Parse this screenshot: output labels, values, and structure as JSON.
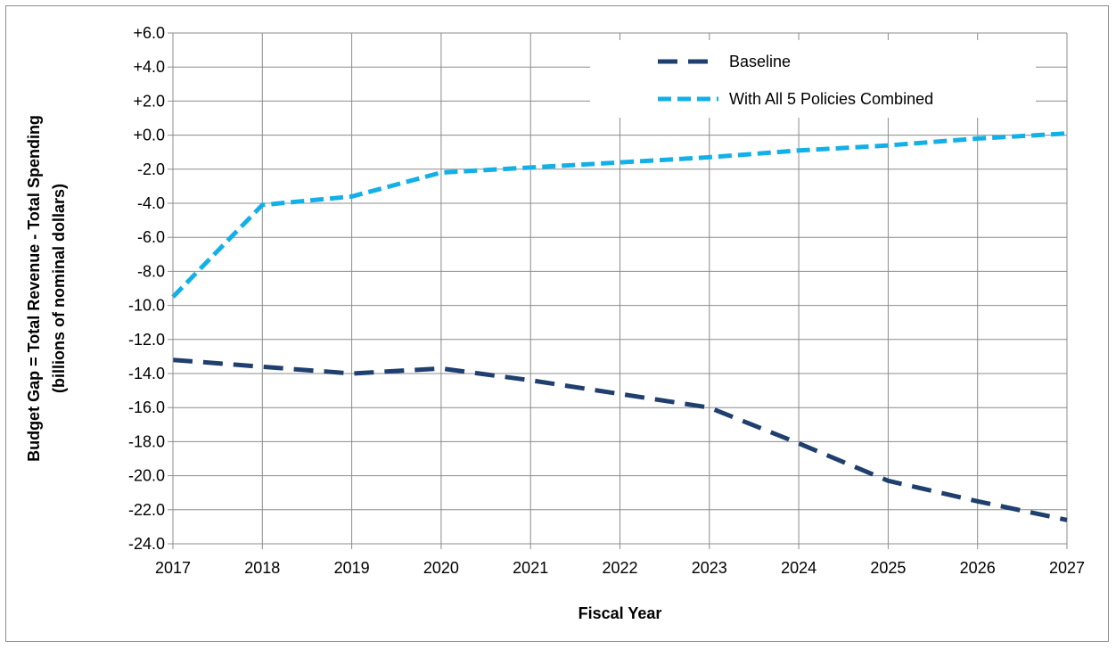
{
  "chart_data": {
    "type": "line",
    "xlabel": "Fiscal Year",
    "ylabel_line1": "Budget Gap = Total Revenue - Total Spending",
    "ylabel_line2": "(billions of nominal dollars)",
    "x": [
      2017,
      2018,
      2019,
      2020,
      2021,
      2022,
      2023,
      2024,
      2025,
      2026,
      2027
    ],
    "x_tick_labels": [
      "2017",
      "2018",
      "2019",
      "2020",
      "2021",
      "2022",
      "2023",
      "2024",
      "2025",
      "2026",
      "2027"
    ],
    "ylim": [
      -24,
      6
    ],
    "y_ticks": [
      6,
      4,
      2,
      0,
      -2,
      -4,
      -6,
      -8,
      -10,
      -12,
      -14,
      -16,
      -18,
      -20,
      -22,
      -24
    ],
    "y_tick_labels": [
      "+6.0",
      "+4.0",
      "+2.0",
      "+0.0",
      "-2.0",
      "-4.0",
      "-6.0",
      "-8.0",
      "-10.0",
      "-12.0",
      "-14.0",
      "-16.0",
      "-18.0",
      "-20.0",
      "-22.0",
      "-24.0"
    ],
    "positive_tick_color": "#000000",
    "negative_tick_color": "#ff0000",
    "grid": true,
    "legend_position": "top-right",
    "series": [
      {
        "name": "Baseline",
        "color": "#1f3f6e",
        "values": [
          -13.2,
          -13.6,
          -14.0,
          -13.7,
          -14.4,
          -15.2,
          -16.0,
          -18.1,
          -20.3,
          -21.5,
          -22.6
        ]
      },
      {
        "name": "With All 5 Policies Combined",
        "color": "#13b0e8",
        "values": [
          -9.5,
          -4.1,
          -3.6,
          -2.2,
          -1.9,
          -1.6,
          -1.3,
          -0.9,
          -0.6,
          -0.2,
          0.1
        ]
      }
    ]
  }
}
